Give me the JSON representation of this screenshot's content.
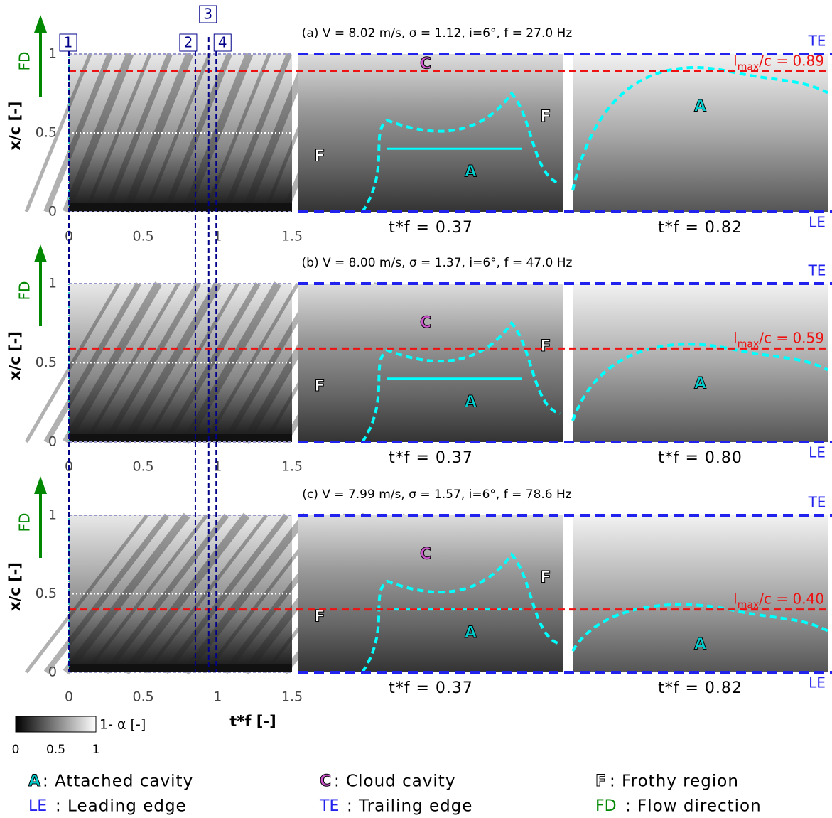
{
  "panels": [
    {
      "title": "(a) V = 8.02 m/s, σ = 1.12, i=6°, f = 27.0 Hz",
      "lmax": 0.89,
      "lmax_text": "/c = 0.89",
      "snapshots": [
        "t*f = 0.37",
        "t*f = 0.82"
      ]
    },
    {
      "title": "(b) V = 8.00 m/s, σ = 1.37, i=6°, f = 47.0 Hz",
      "lmax": 0.59,
      "lmax_text": "/c = 0.59",
      "snapshots": [
        "t*f = 0.37",
        "t*f = 0.80"
      ]
    },
    {
      "title": "(c) V = 7.99 m/s, σ = 1.57, i=6°, f = 78.6 Hz",
      "lmax": 0.4,
      "lmax_text": "/c = 0.40",
      "snapshots": [
        "t*f = 0.37",
        "t*f = 0.82"
      ]
    }
  ],
  "lmax_symbol": "l",
  "lmax_subscript": "max",
  "y_label": "x/c [-]",
  "x_label": "t*f [-]",
  "yticks": [
    0,
    0.5,
    1
  ],
  "xticks": [
    0,
    0.5,
    1,
    1.5
  ],
  "edge_top": "TE",
  "edge_bottom": "LE",
  "flow": "FD",
  "markers": [
    {
      "label": "1",
      "t": 0
    },
    {
      "label": "2",
      "t": 0.85
    },
    {
      "label": "3",
      "t": 0.94
    },
    {
      "label": "4",
      "t": 0.99
    }
  ],
  "colorbar": {
    "label": "1- α [-]",
    "ticks": [
      0,
      0.5,
      1
    ]
  },
  "legend": [
    {
      "symbol": "A",
      "text": ": Attached cavity"
    },
    {
      "symbol": "C",
      "text": ": Cloud cavity"
    },
    {
      "symbol": "F",
      "text": ": Frothy region"
    },
    {
      "symbol": "LE",
      "text": ": Leading edge"
    },
    {
      "symbol": "TE",
      "text": ": Trailing edge"
    },
    {
      "symbol": "FD",
      "text": ": Flow direction"
    }
  ]
}
